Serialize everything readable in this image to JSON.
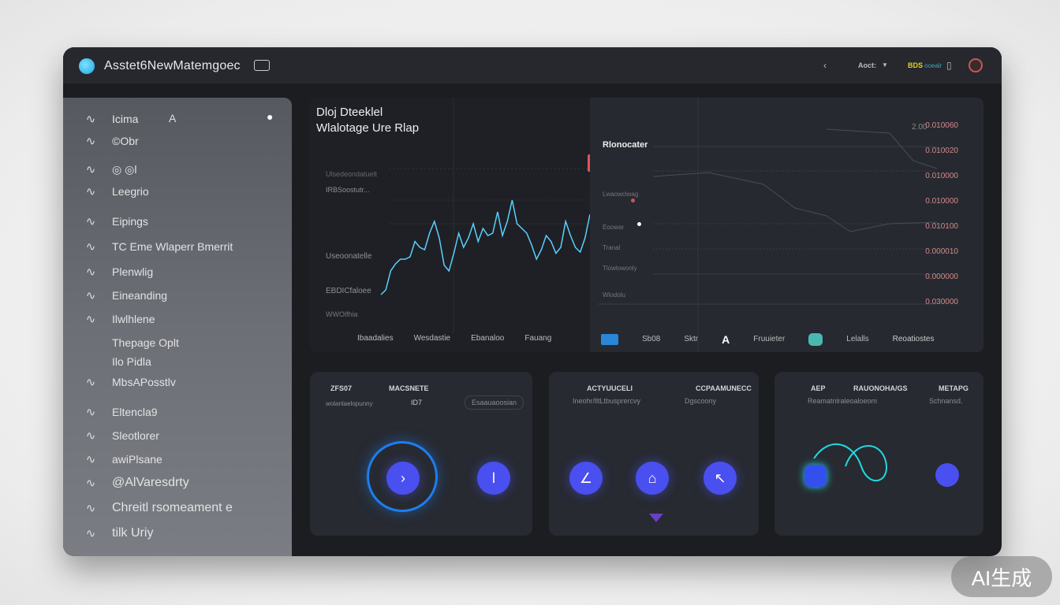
{
  "app": {
    "title": "Asstet6NewMatemgoec",
    "header": {
      "back_icon": "chevron-left-icon",
      "account_label": "Aoct:",
      "status_label": "BDS",
      "status_suffix": "ooealr",
      "avatar_icon": "avatar"
    }
  },
  "sidebar": {
    "items": [
      {
        "icon": "wave-icon",
        "label": "Icima"
      },
      {
        "icon": "hook-icon",
        "label": "©Obr"
      },
      {
        "icon": "seven-icon",
        "label": "◎ ◎l"
      },
      {
        "icon": "clip-icon",
        "label": "Leegrio"
      },
      {
        "icon": "cross-icon",
        "label": "Eipings"
      },
      {
        "icon": "zigzag-icon",
        "label": "TC Eme Wlaperr Bmerrit"
      },
      {
        "icon": "pill-icon",
        "label": "Plenwlig"
      },
      {
        "icon": "hand-icon",
        "label": "Eineanding"
      },
      {
        "icon": "angle-icon",
        "label": "Ilwlhlene"
      },
      {
        "icon": "",
        "label": "Thepage   Oplt"
      },
      {
        "icon": "",
        "label": "Ilo Pidla"
      },
      {
        "icon": "globe-icon",
        "label": "MbsAPosstlv"
      },
      {
        "icon": "a-icon",
        "label": "Eltencla9"
      },
      {
        "icon": "tree-icon",
        "label": "Sleotlorer"
      },
      {
        "icon": "arrow-icon",
        "label": "awiPlsane"
      },
      {
        "icon": "arch-icon",
        "label": "@AlVaresdrty"
      },
      {
        "icon": "pin-icon",
        "label": "Chreitl rsomeament e"
      },
      {
        "icon": "wifi-icon",
        "label": "tilk Uriy"
      }
    ]
  },
  "main": {
    "title_line1": "Dloj Dteeklel",
    "title_line2": "Wlalotage Ure Rlap",
    "left_labels": [
      "Ulsedeondatuelt",
      "IRBSoostutr...",
      "Useoonatelle",
      "EBDICfaloee",
      "WWOlfhia"
    ],
    "tabs": [
      "Ibaadalies",
      "Wesdastie",
      "Ebanaloo",
      "Fauang"
    ],
    "right_title": "Rlonocater",
    "right_labels": [
      "Lwaowclwag",
      "Eoowar",
      "Tranal",
      "Tlowlowonly",
      "Wlodolu"
    ],
    "right_top": "2.00",
    "axis_values": [
      "0.010060",
      "0.010020",
      "0.010000",
      "0.010000",
      "0.010100",
      "0.000010",
      "0.000000",
      "0.030000"
    ],
    "right_tabs": [
      "Sb08",
      "Sktr",
      "Fruuieter",
      "Lelalls",
      "Reoatiostes"
    ],
    "series": [
      10,
      14,
      30,
      36,
      40,
      40,
      42,
      55,
      50,
      48,
      62,
      72,
      58,
      35,
      30,
      45,
      62,
      50,
      58,
      70,
      55,
      66,
      60,
      62,
      80,
      60,
      72,
      90,
      70,
      66,
      62,
      52,
      40,
      48,
      60,
      55,
      45,
      50,
      72,
      60,
      50,
      46,
      58,
      78
    ]
  },
  "cards": [
    {
      "title": "ZFS07",
      "title2": "MACSNETE",
      "sub": "wolanlaelopunny",
      "sub2": "ID7",
      "pill": "Esaauaoosian"
    },
    {
      "title": "ACTYUUCELI",
      "title2": "CCPAAMUNECC",
      "sub": "Ineohr/lltLtbusprercvy",
      "sub2": "Dgscoony"
    },
    {
      "title": "AEP",
      "title2": "RAUONOHA/GS",
      "title3": "METAPG",
      "sub": "Reamatnlraleoaloeom",
      "sub2": "Schnansd."
    }
  ],
  "watermark": "AI生成",
  "colors": {
    "accent": "#1fa8f0",
    "button": "#4a4ff0",
    "teal": "#22d8e0",
    "alert": "#e05555"
  }
}
